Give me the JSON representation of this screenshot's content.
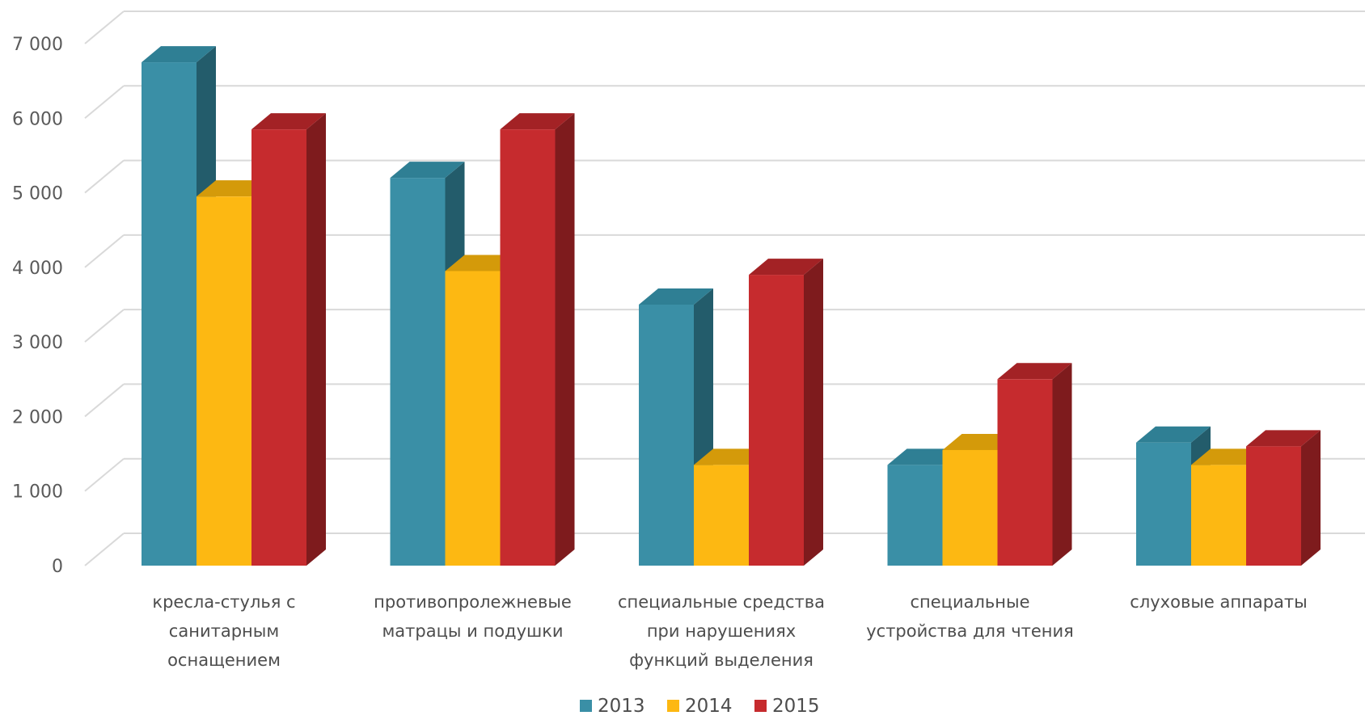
{
  "chart_data": {
    "type": "bar",
    "categories": [
      [
        "кресла-стулья с",
        "санитарным",
        "оснащением"
      ],
      [
        "противопролежневые",
        "матрацы и подушки"
      ],
      [
        "специальные средства",
        "при нарушениях",
        "функций  выделения"
      ],
      [
        "специальные",
        "устройства для чтения"
      ],
      [
        "слуховые аппараты"
      ]
    ],
    "series": [
      {
        "name": "2013",
        "values": [
          6750,
          5200,
          3500,
          1350,
          1650
        ]
      },
      {
        "name": "2014",
        "values": [
          4950,
          3950,
          1350,
          1550,
          1350
        ]
      },
      {
        "name": "2015",
        "values": [
          5850,
          5850,
          3900,
          2500,
          1600
        ]
      }
    ],
    "yticks": [
      "0",
      "1 000",
      "2 000",
      "3 000",
      "4 000",
      "5 000",
      "6 000",
      "7 000"
    ],
    "ylim": [
      0,
      7000
    ],
    "grid": true,
    "legend_position": "bottom-center",
    "style": "3d-clustered-column",
    "colors": {
      "2013": {
        "front": "#3a8fa6",
        "top": "#2f7f94",
        "side": "#235c6b"
      },
      "2014": {
        "front": "#fdb812",
        "top": "#d49a0a",
        "side": "#b3820a"
      },
      "2015": {
        "front": "#c62b2e",
        "top": "#a32225",
        "side": "#7e1b1d"
      }
    },
    "title": "",
    "xlabel": "",
    "ylabel": ""
  }
}
